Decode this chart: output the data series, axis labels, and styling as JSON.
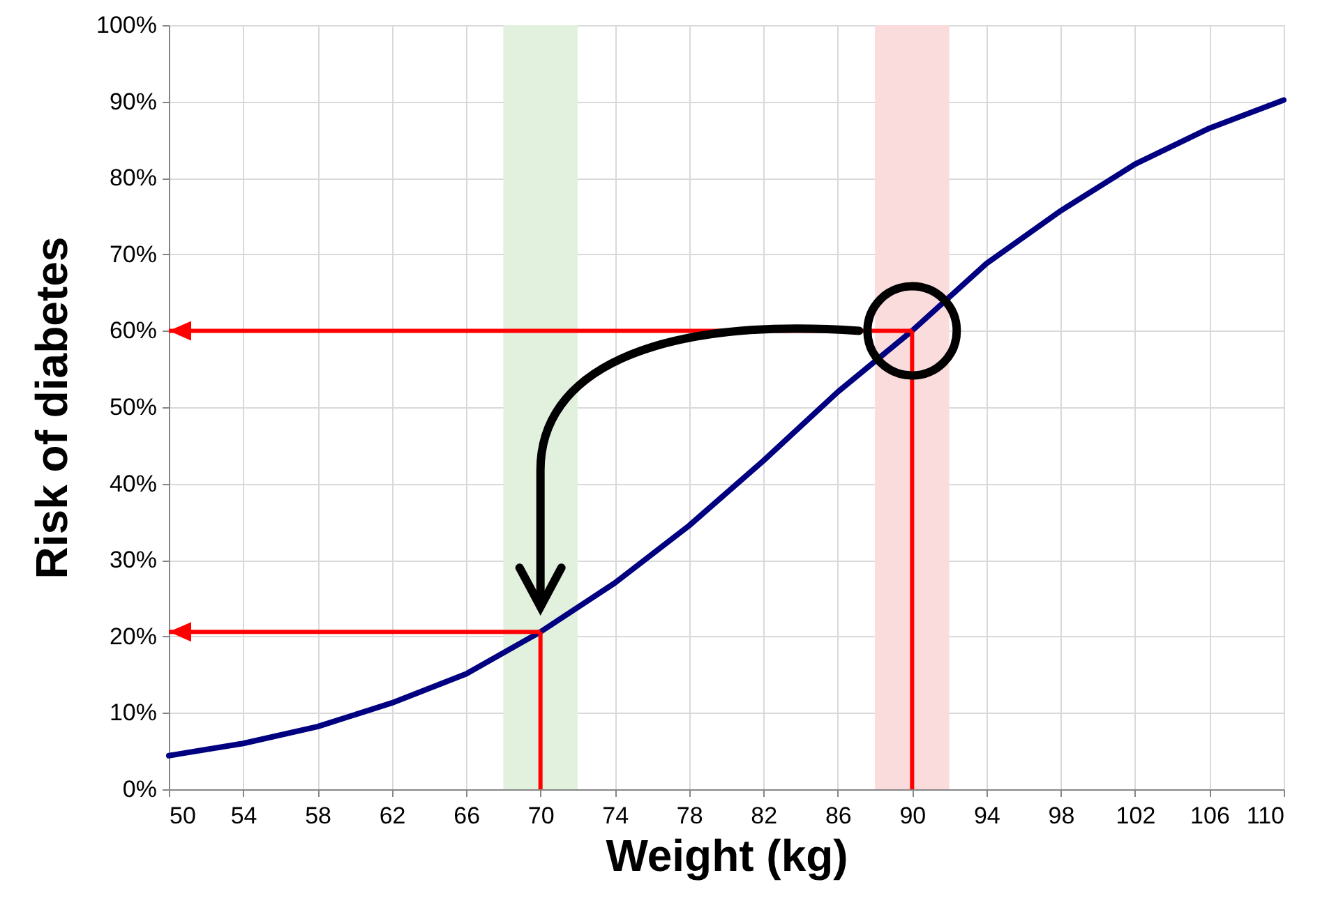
{
  "chart_data": {
    "type": "line",
    "xlabel": "Weight (kg)",
    "ylabel": "Risk of diabetes",
    "x": [
      50,
      54,
      58,
      62,
      66,
      70,
      74,
      78,
      82,
      86,
      90,
      94,
      98,
      102,
      106,
      110
    ],
    "series": [
      {
        "color": "#000080",
        "values": [
          4.4,
          6,
          8.2,
          11.3,
          15.1,
          20.6,
          27,
          34.5,
          43,
          52,
          60,
          68.8,
          75.7,
          81.8,
          86.5,
          90.2
        ]
      }
    ],
    "xlim": [
      50,
      110
    ],
    "xticks": [
      50,
      54,
      58,
      62,
      66,
      70,
      74,
      78,
      82,
      86,
      90,
      94,
      98,
      102,
      106,
      110
    ],
    "ylim": [
      0,
      100
    ],
    "yticks": [
      {
        "value": 0,
        "label": "0%"
      },
      {
        "value": 10,
        "label": "10%"
      },
      {
        "value": 20,
        "label": "20%"
      },
      {
        "value": 30,
        "label": "30%"
      },
      {
        "value": 40,
        "label": "40%"
      },
      {
        "value": 50,
        "label": "50%"
      },
      {
        "value": 60,
        "label": "60%"
      },
      {
        "value": 70,
        "label": "70%"
      },
      {
        "value": 80,
        "label": "80%"
      },
      {
        "value": 90,
        "label": "90%"
      },
      {
        "value": 100,
        "label": "100%"
      }
    ],
    "grid": true,
    "marker": "none",
    "line_style": "solid",
    "bands": [
      {
        "axis": "x",
        "from": 68,
        "to": 72,
        "color": "#e2f0de"
      },
      {
        "axis": "x",
        "from": 88,
        "to": 92,
        "color": "#fbdcdc"
      }
    ],
    "ref_lines": [
      {
        "axis": "x",
        "value": 70,
        "color": "#ff0000"
      },
      {
        "axis": "x",
        "value": 90,
        "color": "#ff0000"
      },
      {
        "axis": "y",
        "value": 20.6,
        "color": "#ff0000"
      },
      {
        "axis": "y",
        "value": 60,
        "color": "#ff0000"
      }
    ]
  }
}
